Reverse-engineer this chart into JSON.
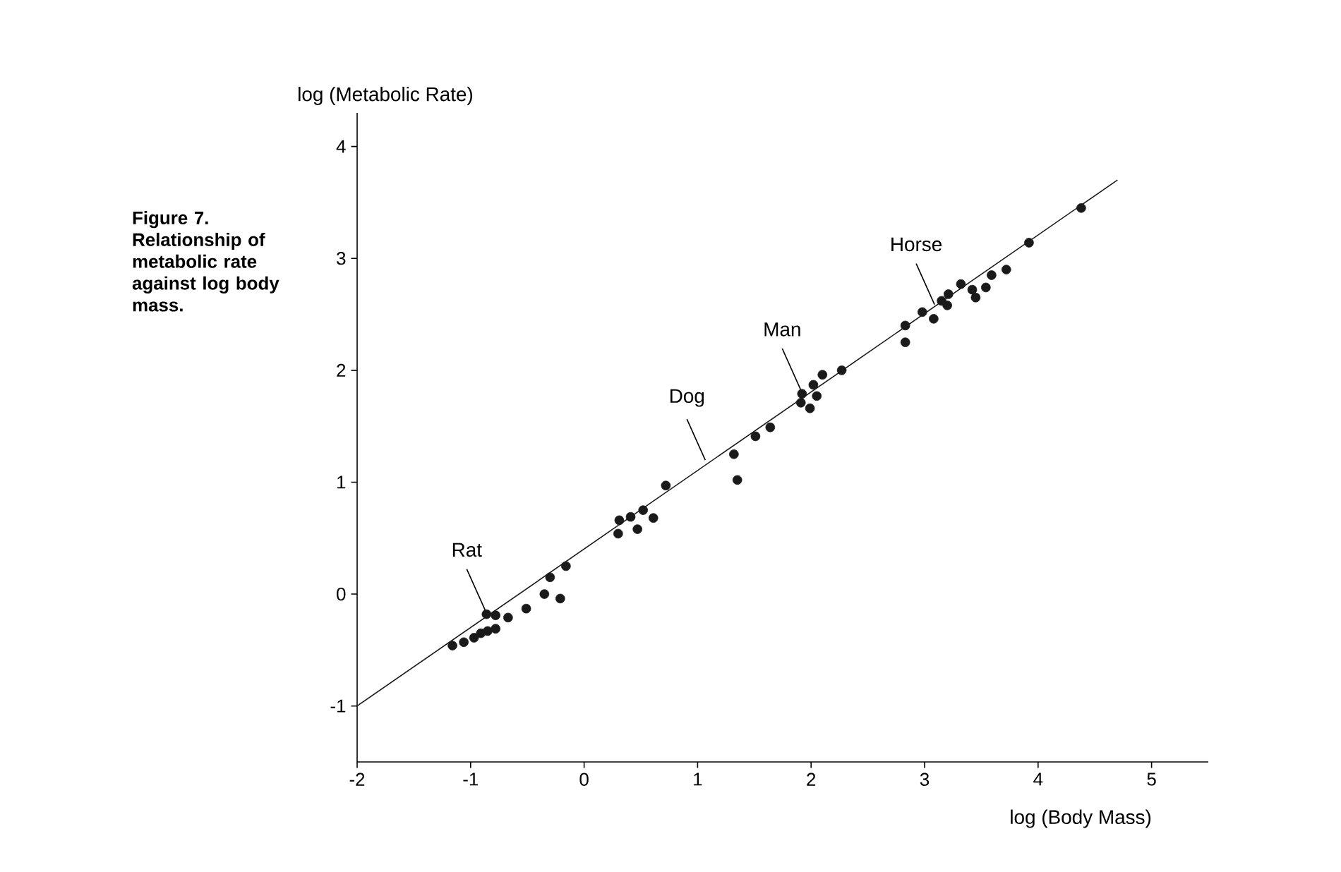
{
  "chart_data": {
    "type": "scatter",
    "xlabel": "log (Body Mass)",
    "ylabel": "log (Metabolic Rate)",
    "xlim": [
      -2,
      5.5
    ],
    "ylim": [
      -1.5,
      4.3
    ],
    "xticks": [
      -2,
      -1,
      0,
      1,
      2,
      3,
      4,
      5
    ],
    "yticks": [
      -1,
      0,
      1,
      2,
      3,
      4
    ],
    "grid": false,
    "series": [
      {
        "color": "#1a1a1a",
        "marker": "circle",
        "x": [
          -1.16,
          -1.06,
          -0.97,
          -0.91,
          -0.85,
          -0.78,
          -0.86,
          -0.78,
          -0.67,
          -0.51,
          -0.35,
          -0.3,
          -0.21,
          -0.16,
          0.3,
          0.31,
          0.41,
          0.47,
          0.52,
          0.61,
          0.72,
          1.32,
          1.35,
          1.51,
          1.64,
          1.91,
          1.92,
          2.02,
          2.05,
          1.99,
          2.1,
          2.27,
          2.83,
          2.83,
          2.98,
          3.08,
          3.15,
          3.2,
          3.21,
          3.32,
          3.42,
          3.45,
          3.59,
          3.72,
          3.54,
          3.92,
          4.38
        ],
        "values": [
          -0.46,
          -0.43,
          -0.39,
          -0.35,
          -0.33,
          -0.31,
          -0.18,
          -0.19,
          -0.21,
          -0.13,
          0.0,
          0.15,
          -0.04,
          0.25,
          0.54,
          0.66,
          0.69,
          0.58,
          0.75,
          0.68,
          0.97,
          1.25,
          1.02,
          1.41,
          1.49,
          1.71,
          1.79,
          1.87,
          1.77,
          1.66,
          1.96,
          2.0,
          2.4,
          2.25,
          2.52,
          2.46,
          2.62,
          2.58,
          2.68,
          2.77,
          2.72,
          2.65,
          2.85,
          2.9,
          2.74,
          3.14,
          3.45
        ]
      },
      {
        "type": "line",
        "color": "#1a1a1a",
        "marker": "none",
        "line_style": "solid",
        "x": [
          -2,
          4.7
        ],
        "values": [
          -1,
          3.7
        ]
      }
    ],
    "annotations": [
      {
        "text": "Rat",
        "x": -0.86,
        "y": -0.18
      },
      {
        "text": "Dog",
        "x": 1.08,
        "y": 1.16
      },
      {
        "text": "Man",
        "x": 1.92,
        "y": 1.79
      },
      {
        "text": "Horse",
        "x": 3.1,
        "y": 2.55
      },
      "**Figure 7. Relationship of metabolic rate against log body mass.**"
    ]
  }
}
